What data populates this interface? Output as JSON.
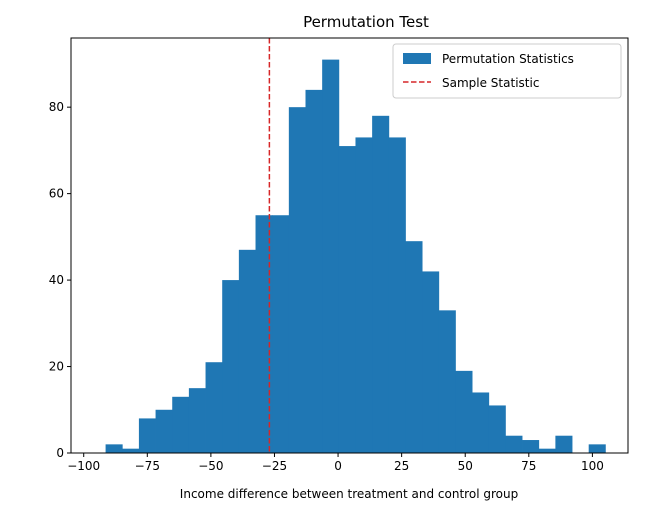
{
  "chart_data": {
    "type": "bar",
    "title": "Permutation Test",
    "xlabel": "Income difference between treatment and control group",
    "ylabel": "",
    "xlim": [
      -105,
      114
    ],
    "ylim": [
      0,
      96
    ],
    "xticks": [
      -100,
      -75,
      -50,
      -25,
      0,
      25,
      50,
      75,
      100
    ],
    "xtick_labels": [
      "−100",
      "−75",
      "−50",
      "−25",
      "0",
      "25",
      "50",
      "75",
      "100"
    ],
    "yticks": [
      0,
      20,
      40,
      60,
      80
    ],
    "ytick_labels": [
      "0",
      "20",
      "40",
      "60",
      "80"
    ],
    "bin_start": -91.4,
    "bin_width": 6.55,
    "counts": [
      2,
      1,
      8,
      10,
      13,
      15,
      21,
      40,
      47,
      55,
      55,
      80,
      84,
      91,
      71,
      73,
      78,
      73,
      49,
      42,
      33,
      19,
      14,
      11,
      4,
      3,
      1,
      4,
      0,
      2
    ],
    "sample_statistic": -27,
    "series": [
      {
        "name": "Permutation Statistics",
        "color": "#1f77b4",
        "kind": "histogram"
      },
      {
        "name": "Sample Statistic",
        "color": "#d62728",
        "kind": "dashed-vertical-line"
      }
    ],
    "legend_position": "top-right",
    "grid": false
  }
}
